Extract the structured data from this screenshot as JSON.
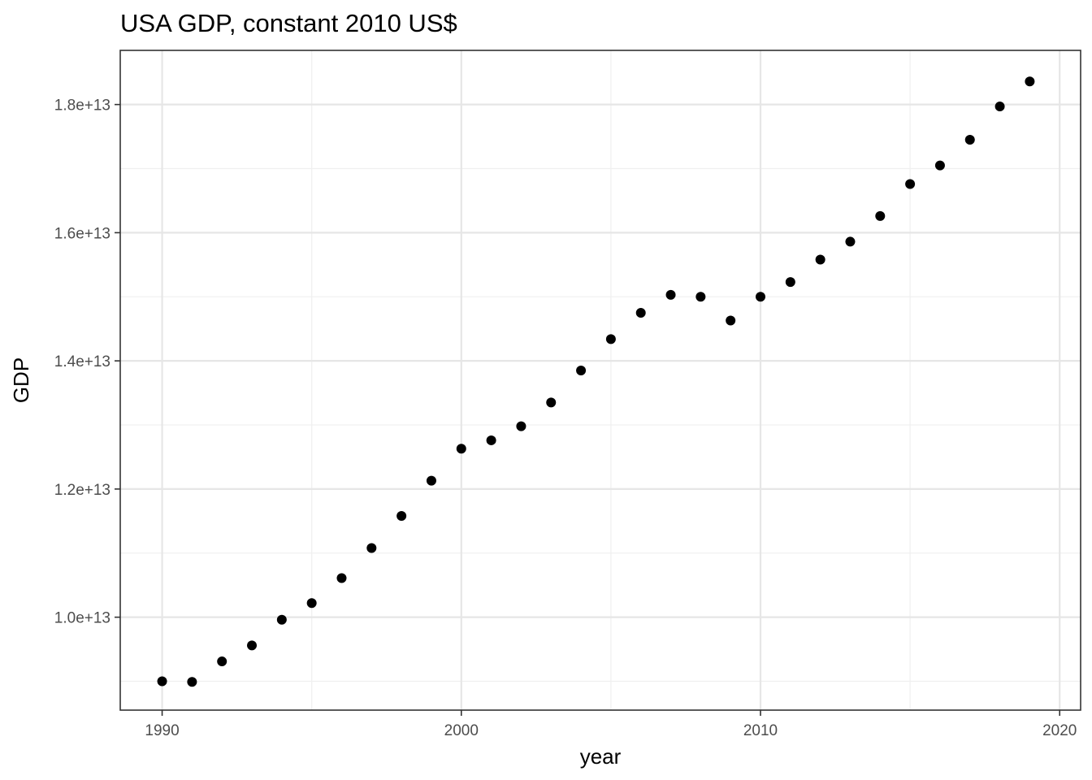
{
  "chart_data": {
    "type": "scatter",
    "title": "USA GDP, constant 2010 US$",
    "xlabel": "year",
    "ylabel": "GDP",
    "xlim": [
      1988.6,
      2020.7
    ],
    "ylim": [
      8550000000000.0,
      18845000000000.0
    ],
    "x_ticks": [
      1990,
      2000,
      2010,
      2020
    ],
    "x_tick_labels": [
      "1990",
      "2000",
      "2010",
      "2020"
    ],
    "y_ticks": [
      10000000000000.0,
      12000000000000.0,
      14000000000000.0,
      16000000000000.0,
      18000000000000.0
    ],
    "y_tick_labels": [
      "1.0e+13",
      "1.2e+13",
      "1.4e+13",
      "1.6e+13",
      "1.8e+13"
    ],
    "grid": true,
    "legend": "none",
    "point_color": "#000000",
    "x": [
      1990,
      1991,
      1992,
      1993,
      1994,
      1995,
      1996,
      1997,
      1998,
      1999,
      2000,
      2001,
      2002,
      2003,
      2004,
      2005,
      2006,
      2007,
      2008,
      2009,
      2010,
      2011,
      2012,
      2013,
      2014,
      2015,
      2016,
      2017,
      2018,
      2019
    ],
    "y": [
      9000000000000.0,
      8990000000000.0,
      9310000000000.0,
      9560000000000.0,
      9960000000000.0,
      10220000000000.0,
      10610000000000.0,
      11080000000000.0,
      11580000000000.0,
      12130000000000.0,
      12630000000000.0,
      12760000000000.0,
      12980000000000.0,
      13350000000000.0,
      13850000000000.0,
      14340000000000.0,
      14750000000000.0,
      15030000000000.0,
      15000000000000.0,
      14630000000000.0,
      15000000000000.0,
      15230000000000.0,
      15580000000000.0,
      15860000000000.0,
      16260000000000.0,
      16760000000000.0,
      17050000000000.0,
      17450000000000.0,
      17970000000000.0,
      18360000000000.0
    ]
  }
}
